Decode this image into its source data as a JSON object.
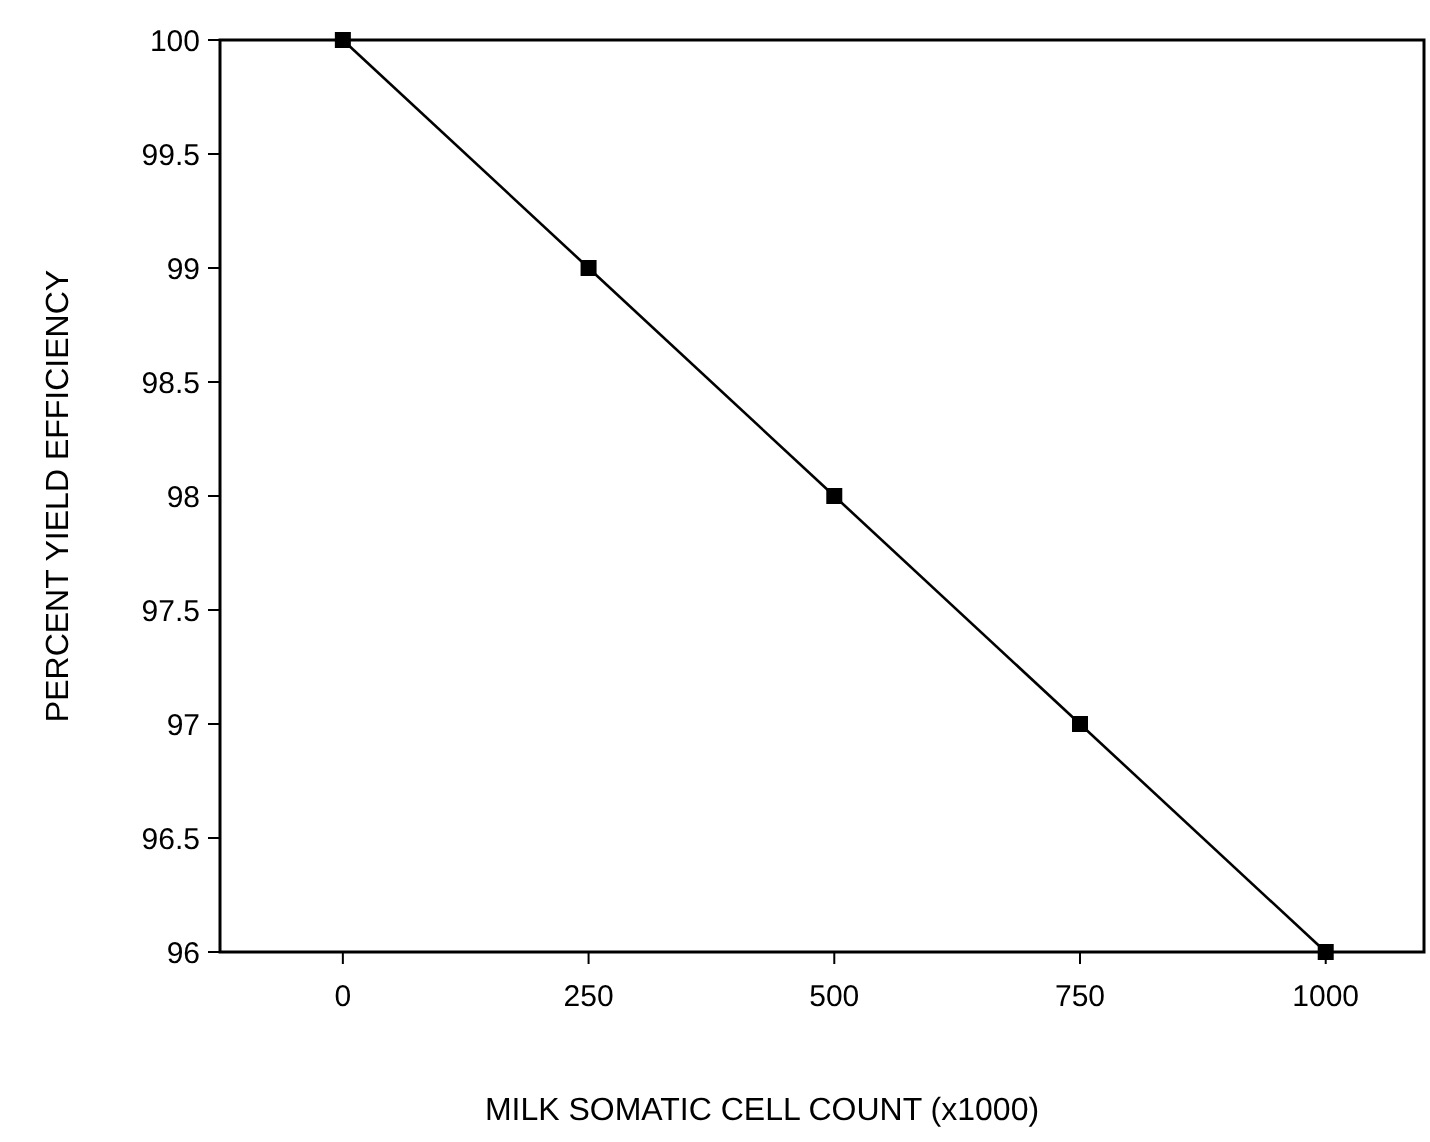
{
  "chart_data": {
    "type": "line",
    "xlabel": "MILK SOMATIC CELL COUNT (x1000)",
    "ylabel": "PERCENT YIELD EFFICIENCY",
    "x": [
      0,
      250,
      500,
      750,
      1000
    ],
    "series": [
      {
        "color": "#000000",
        "values": [
          100,
          99,
          98,
          97,
          96
        ]
      }
    ],
    "xlim": [
      -125,
      1100
    ],
    "xticks": [
      0,
      250,
      500,
      750,
      1000
    ],
    "ylim": [
      96,
      100
    ],
    "yticks": [
      96,
      96.5,
      97,
      97.5,
      98,
      98.5,
      99,
      99.5,
      100
    ],
    "marker": "square",
    "line_style": "solid",
    "grid": false
  }
}
